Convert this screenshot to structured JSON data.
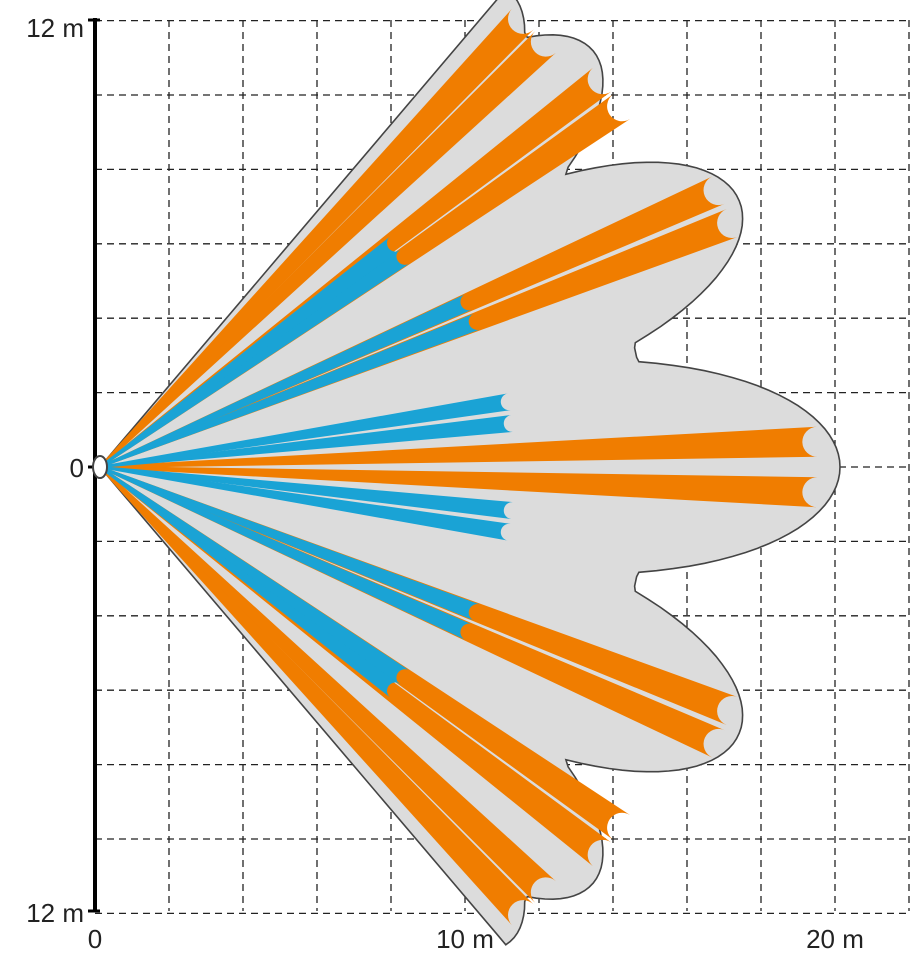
{
  "labels": {
    "y_top": "12 m",
    "y_mid": "0",
    "y_bottom": "12 m",
    "x_start": "0",
    "x_mid": "10 m",
    "x_end": "20 m"
  },
  "colors": {
    "background": "#ffffff",
    "coverage_fill": "#dcdcdc",
    "coverage_outline": "#444444",
    "long_range_beam": "#f07d00",
    "short_range_beam": "#1aa3d5",
    "axis": "#000000",
    "grid": "#222222"
  },
  "zones": {
    "long_range": [
      {
        "angle_deg": -46.5,
        "range_m": 16.6
      },
      {
        "angle_deg": -43.5,
        "range_m": 16.6
      },
      {
        "angle_deg": -37.5,
        "range_m": 17.1
      },
      {
        "angle_deg": -34.5,
        "range_m": 17.1
      },
      {
        "angle_deg": -24.0,
        "range_m": 18.3
      },
      {
        "angle_deg": -21.0,
        "range_m": 18.3
      },
      {
        "angle_deg": -2.0,
        "range_m": 19.4
      },
      {
        "angle_deg": 2.0,
        "range_m": 19.4
      },
      {
        "angle_deg": 21.0,
        "range_m": 18.3
      },
      {
        "angle_deg": 24.0,
        "range_m": 18.3
      },
      {
        "angle_deg": 34.5,
        "range_m": 17.1
      },
      {
        "angle_deg": 37.5,
        "range_m": 17.1
      },
      {
        "angle_deg": 43.5,
        "range_m": 16.6
      },
      {
        "angle_deg": 46.5,
        "range_m": 16.6
      }
    ],
    "short_range": [
      {
        "angle_deg": -37.0,
        "range_m": 10.0
      },
      {
        "angle_deg": -34.5,
        "range_m": 10.0
      },
      {
        "angle_deg": -24.0,
        "range_m": 10.9
      },
      {
        "angle_deg": -21.0,
        "range_m": 10.9
      },
      {
        "angle_deg": -9.0,
        "range_m": 11.2
      },
      {
        "angle_deg": -6.0,
        "range_m": 11.2
      },
      {
        "angle_deg": 6.0,
        "range_m": 11.2
      },
      {
        "angle_deg": 9.0,
        "range_m": 11.2
      },
      {
        "angle_deg": 21.0,
        "range_m": 10.9
      },
      {
        "angle_deg": 24.0,
        "range_m": 10.9
      },
      {
        "angle_deg": 34.5,
        "range_m": 10.0
      },
      {
        "angle_deg": 37.0,
        "range_m": 10.0
      }
    ]
  }
}
